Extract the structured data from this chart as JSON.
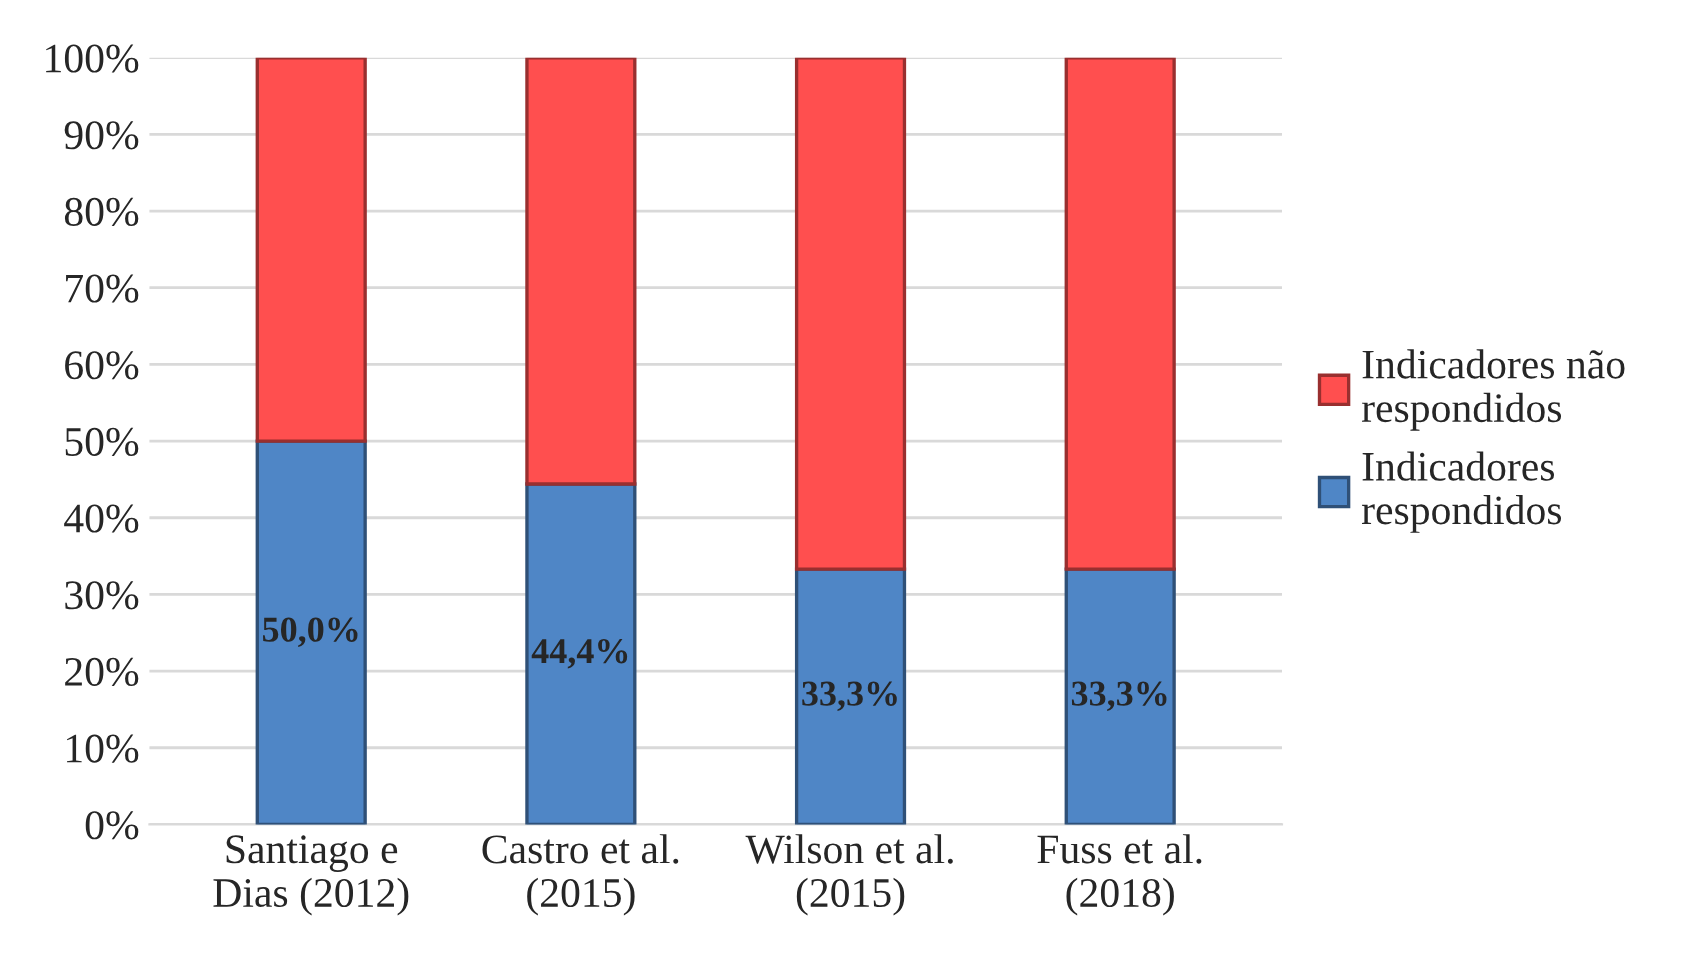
{
  "chart_data": {
    "type": "bar",
    "stacked": true,
    "categories": [
      "Santiago e\nDias (2012)",
      "Castro et al.\n(2015)",
      "Wilson et al.\n(2015)",
      "Fuss et al.\n(2018)"
    ],
    "series": [
      {
        "name": "Indicadores\nrespondidos",
        "color": "#4f86c6",
        "values": [
          50.0,
          44.4,
          33.3,
          33.3
        ],
        "value_labels": [
          "50,0%",
          "44,4%",
          "33,3%",
          "33,3%"
        ]
      },
      {
        "name": "Indicadores não\nrespondidos",
        "color": "#ff4f4f",
        "values": [
          50.0,
          55.6,
          66.7,
          66.7
        ]
      }
    ],
    "ylim": [
      0,
      100
    ],
    "yticks": [
      {
        "value": 0,
        "label": "0%"
      },
      {
        "value": 10,
        "label": "10%"
      },
      {
        "value": 20,
        "label": "20%"
      },
      {
        "value": 30,
        "label": "30%"
      },
      {
        "value": 40,
        "label": "40%"
      },
      {
        "value": 50,
        "label": "50%"
      },
      {
        "value": 60,
        "label": "60%"
      },
      {
        "value": 70,
        "label": "70%"
      },
      {
        "value": 80,
        "label": "80%"
      },
      {
        "value": 90,
        "label": "90%"
      },
      {
        "value": 100,
        "label": "100%"
      }
    ],
    "grid": "y",
    "legend": "right"
  }
}
